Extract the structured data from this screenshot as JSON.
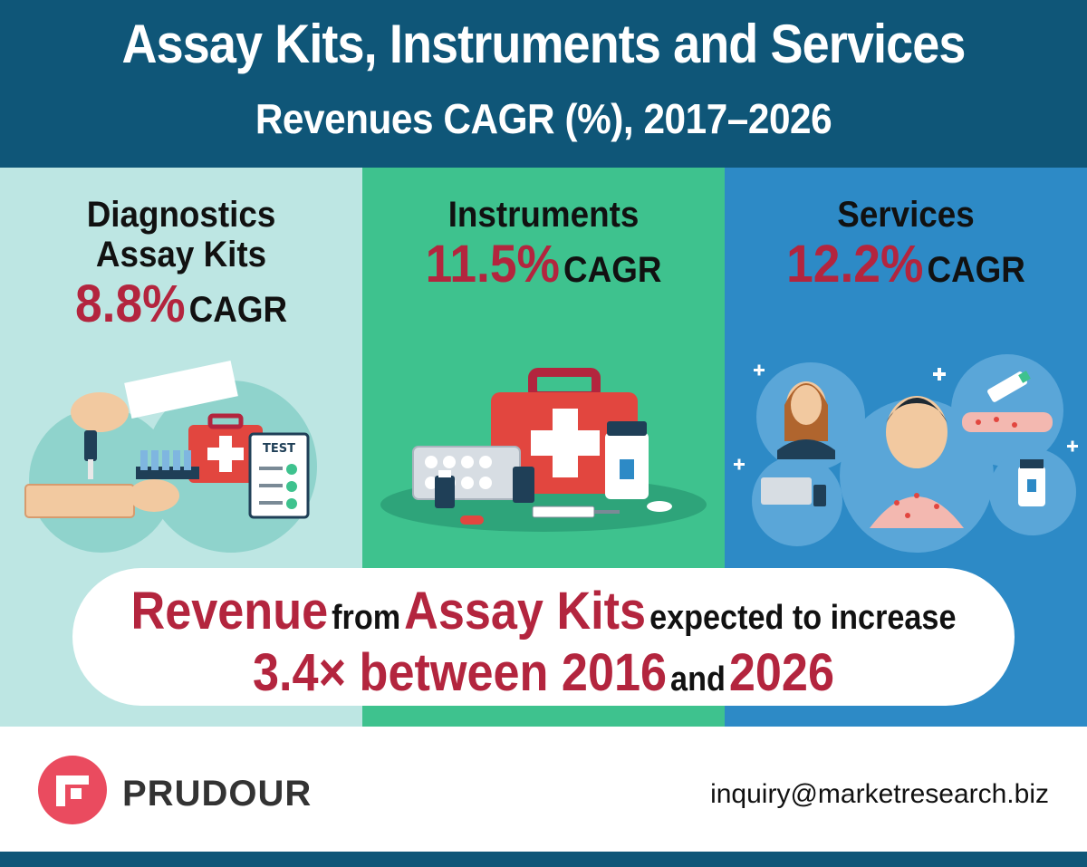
{
  "header": {
    "title": "Assay Kits, Instruments and Services",
    "subtitle": "Revenues CAGR (%), 2017–2026"
  },
  "panels": [
    {
      "category_line1": "Diagnostics",
      "category_line2": "Assay Kits",
      "value": "8.8%",
      "unit": "CAGR",
      "color": "#bde6e3"
    },
    {
      "category_line1": "Instruments",
      "value": "11.5%",
      "unit": "CAGR",
      "color": "#3ec28e"
    },
    {
      "category_line1": "Services",
      "value": "12.2%",
      "unit": "CAGR",
      "color": "#2d8ac6"
    }
  ],
  "illustrations": {
    "panel1_label": "TEST"
  },
  "banner": {
    "part1": "Revenue",
    "part2": "from",
    "part3": "Assay Kits",
    "part4": "expected to increase",
    "part5": "3.4× between 2016",
    "part6": "and",
    "part7": "2026"
  },
  "footer": {
    "brand": "PRUDOUR",
    "email": "inquiry@marketresearch.biz"
  },
  "colors": {
    "header_bg": "#0f5678",
    "accent_red": "#b3253e"
  }
}
